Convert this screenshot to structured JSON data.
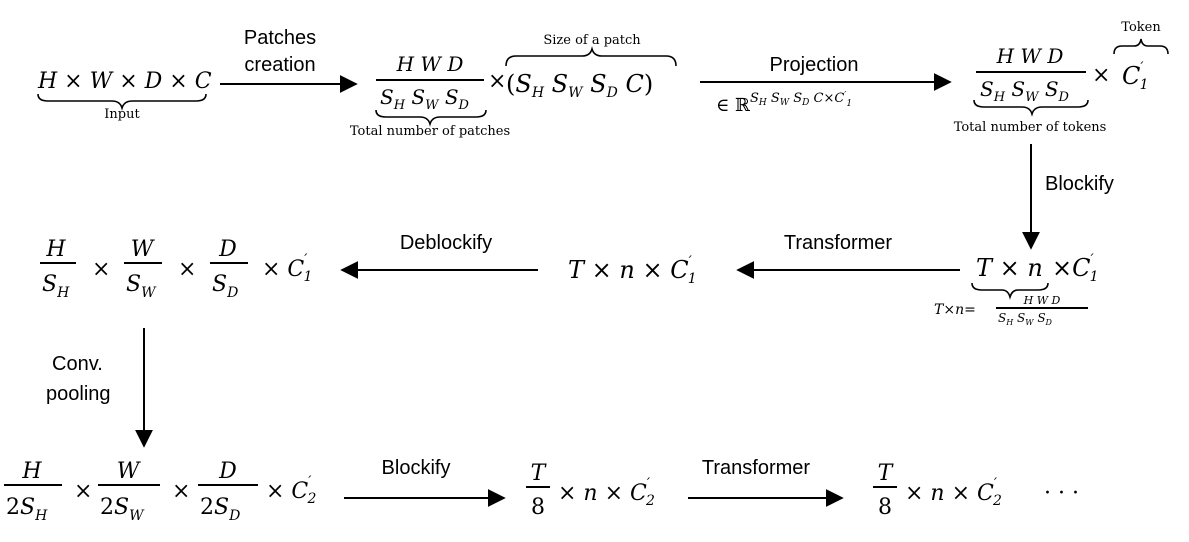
{
  "labels": {
    "patches_creation_1": "Patches",
    "patches_creation_2": "creation",
    "projection": "Projection",
    "token": "Token",
    "blockify_1": "Blockify",
    "transformer_1": "Transformer",
    "deblockify": "Deblockify",
    "conv_pooling_1": "Conv.",
    "conv_pooling_2": "pooling",
    "blockify_2": "Blockify",
    "transformer_2": "Transformer"
  },
  "notes": {
    "input": "Input",
    "size_of_patch": "Size of a patch",
    "total_patches": "Total number of patches",
    "total_tokens": "Total number of tokens"
  },
  "math": {
    "input_expr": "H × W × D × C",
    "hwd": "H W D",
    "shswsd": "S",
    "times": "×",
    "patch_size_expr": "(S",
    "proj_space": "∈ ℝ",
    "c1prime": "C",
    "t_times_n": "T × n",
    "t_n_c1": "T × n × C",
    "H": "H",
    "W": "W",
    "D": "D",
    "SH": "S",
    "sub_H": "H",
    "sub_W": "W",
    "sub_D": "D",
    "two_SH": "2S",
    "T": "T",
    "eight": "8",
    "n_c2": "× n × C",
    "ellipsis": "· · ·"
  }
}
